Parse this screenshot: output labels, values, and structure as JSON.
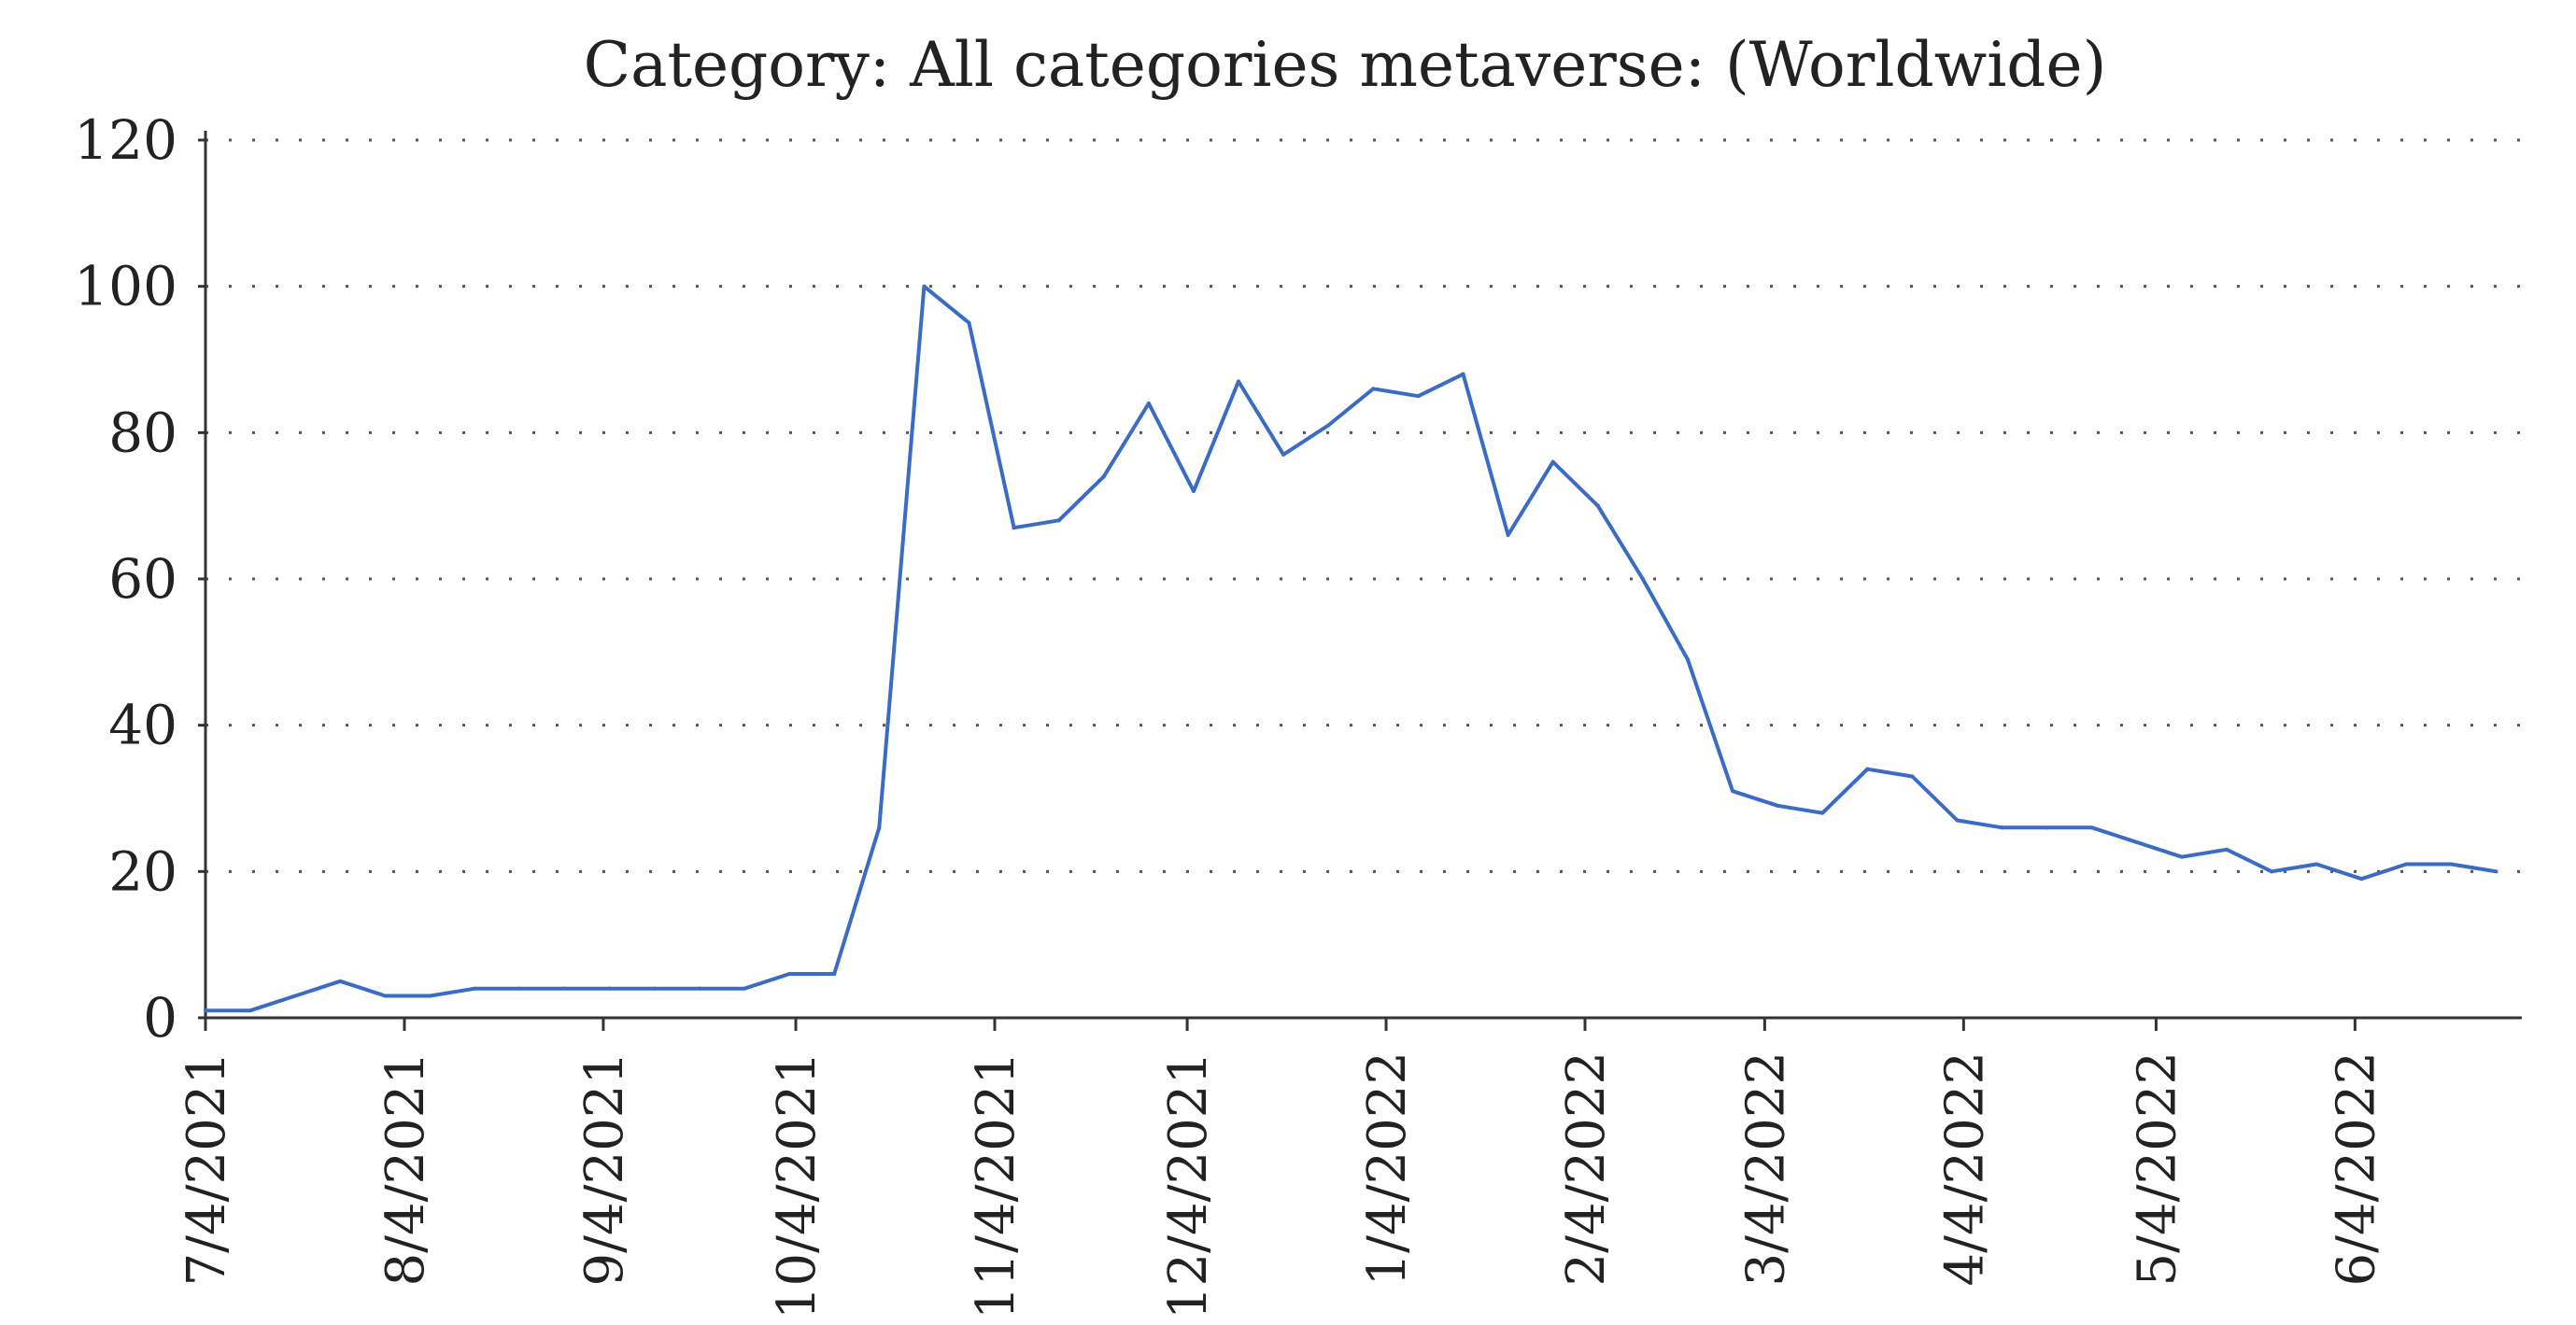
{
  "chart_data": {
    "type": "line",
    "title": "Category: All categories metaverse: (Worldwide)",
    "xlabel": "",
    "ylabel": "",
    "ylim": [
      0,
      120
    ],
    "xlim": [
      "2021-07-04",
      "2022-06-30"
    ],
    "yticks": [
      "0",
      "20",
      "40",
      "60",
      "80",
      "100",
      "120"
    ],
    "xticks": [
      {
        "label": "7/4/2021",
        "date": "2021-07-04"
      },
      {
        "label": "8/4/2021",
        "date": "2021-08-04"
      },
      {
        "label": "9/4/2021",
        "date": "2021-09-04"
      },
      {
        "label": "10/4/2021",
        "date": "2021-10-04"
      },
      {
        "label": "11/4/2021",
        "date": "2021-11-04"
      },
      {
        "label": "12/4/2021",
        "date": "2021-12-04"
      },
      {
        "label": "1/4/2022",
        "date": "2022-01-04"
      },
      {
        "label": "2/4/2022",
        "date": "2022-02-04"
      },
      {
        "label": "3/4/2022",
        "date": "2022-03-04"
      },
      {
        "label": "4/4/2022",
        "date": "2022-04-04"
      },
      {
        "label": "5/4/2022",
        "date": "2022-05-04"
      },
      {
        "label": "6/4/2022",
        "date": "2022-06-04"
      }
    ],
    "grid": {
      "y": true,
      "x": false,
      "style": "dotted"
    },
    "line_color": "#3a6cc6",
    "series": [
      {
        "values": [
          [
            "2021-07-04",
            1
          ],
          [
            "2021-07-11",
            1
          ],
          [
            "2021-07-18",
            3
          ],
          [
            "2021-07-25",
            5
          ],
          [
            "2021-08-01",
            3
          ],
          [
            "2021-08-08",
            3
          ],
          [
            "2021-08-15",
            4
          ],
          [
            "2021-08-22",
            4
          ],
          [
            "2021-08-29",
            4
          ],
          [
            "2021-09-05",
            4
          ],
          [
            "2021-09-12",
            4
          ],
          [
            "2021-09-19",
            4
          ],
          [
            "2021-09-26",
            4
          ],
          [
            "2021-10-03",
            6
          ],
          [
            "2021-10-10",
            6
          ],
          [
            "2021-10-17",
            26
          ],
          [
            "2021-10-24",
            100
          ],
          [
            "2021-10-31",
            95
          ],
          [
            "2021-11-07",
            67
          ],
          [
            "2021-11-14",
            68
          ],
          [
            "2021-11-21",
            74
          ],
          [
            "2021-11-28",
            84
          ],
          [
            "2021-12-05",
            72
          ],
          [
            "2021-12-12",
            87
          ],
          [
            "2021-12-19",
            77
          ],
          [
            "2021-12-26",
            81
          ],
          [
            "2022-01-02",
            86
          ],
          [
            "2022-01-09",
            85
          ],
          [
            "2022-01-16",
            88
          ],
          [
            "2022-01-23",
            66
          ],
          [
            "2022-01-30",
            76
          ],
          [
            "2022-02-06",
            70
          ],
          [
            "2022-02-13",
            60
          ],
          [
            "2022-02-20",
            49
          ],
          [
            "2022-02-27",
            31
          ],
          [
            "2022-03-06",
            29
          ],
          [
            "2022-03-13",
            28
          ],
          [
            "2022-03-20",
            34
          ],
          [
            "2022-03-27",
            33
          ],
          [
            "2022-04-03",
            27
          ],
          [
            "2022-04-10",
            26
          ],
          [
            "2022-04-17",
            26
          ],
          [
            "2022-04-24",
            26
          ],
          [
            "2022-05-01",
            24
          ],
          [
            "2022-05-08",
            22
          ],
          [
            "2022-05-15",
            23
          ],
          [
            "2022-05-22",
            20
          ],
          [
            "2022-05-29",
            21
          ],
          [
            "2022-06-05",
            19
          ],
          [
            "2022-06-12",
            21
          ],
          [
            "2022-06-19",
            21
          ],
          [
            "2022-06-26",
            20
          ]
        ]
      }
    ]
  }
}
